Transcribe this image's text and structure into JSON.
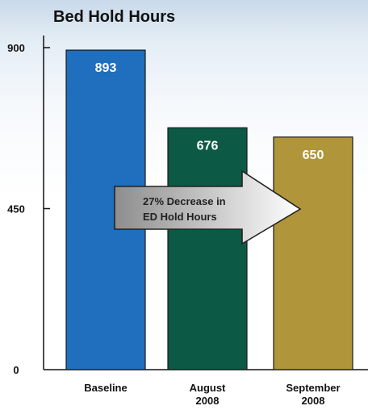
{
  "chart_data": {
    "type": "bar",
    "title": "Bed Hold Hours",
    "xlabel": "",
    "ylabel": "",
    "categories": [
      [
        "Baseline"
      ],
      [
        "August",
        "2008"
      ],
      [
        "September",
        "2008"
      ]
    ],
    "values": [
      893,
      676,
      650
    ],
    "colors": [
      "#1f6fbe",
      "#0c5a45",
      "#b0953a"
    ],
    "ylim": [
      0,
      900
    ],
    "yticks": [
      0,
      450,
      900
    ],
    "grid": false,
    "legend": "none",
    "annotation": {
      "lines": [
        "27% Decrease in",
        "ED Hold Hours"
      ],
      "shape": "arrow-right",
      "colors": [
        "#8d8d8d",
        "#ffffff"
      ]
    }
  }
}
